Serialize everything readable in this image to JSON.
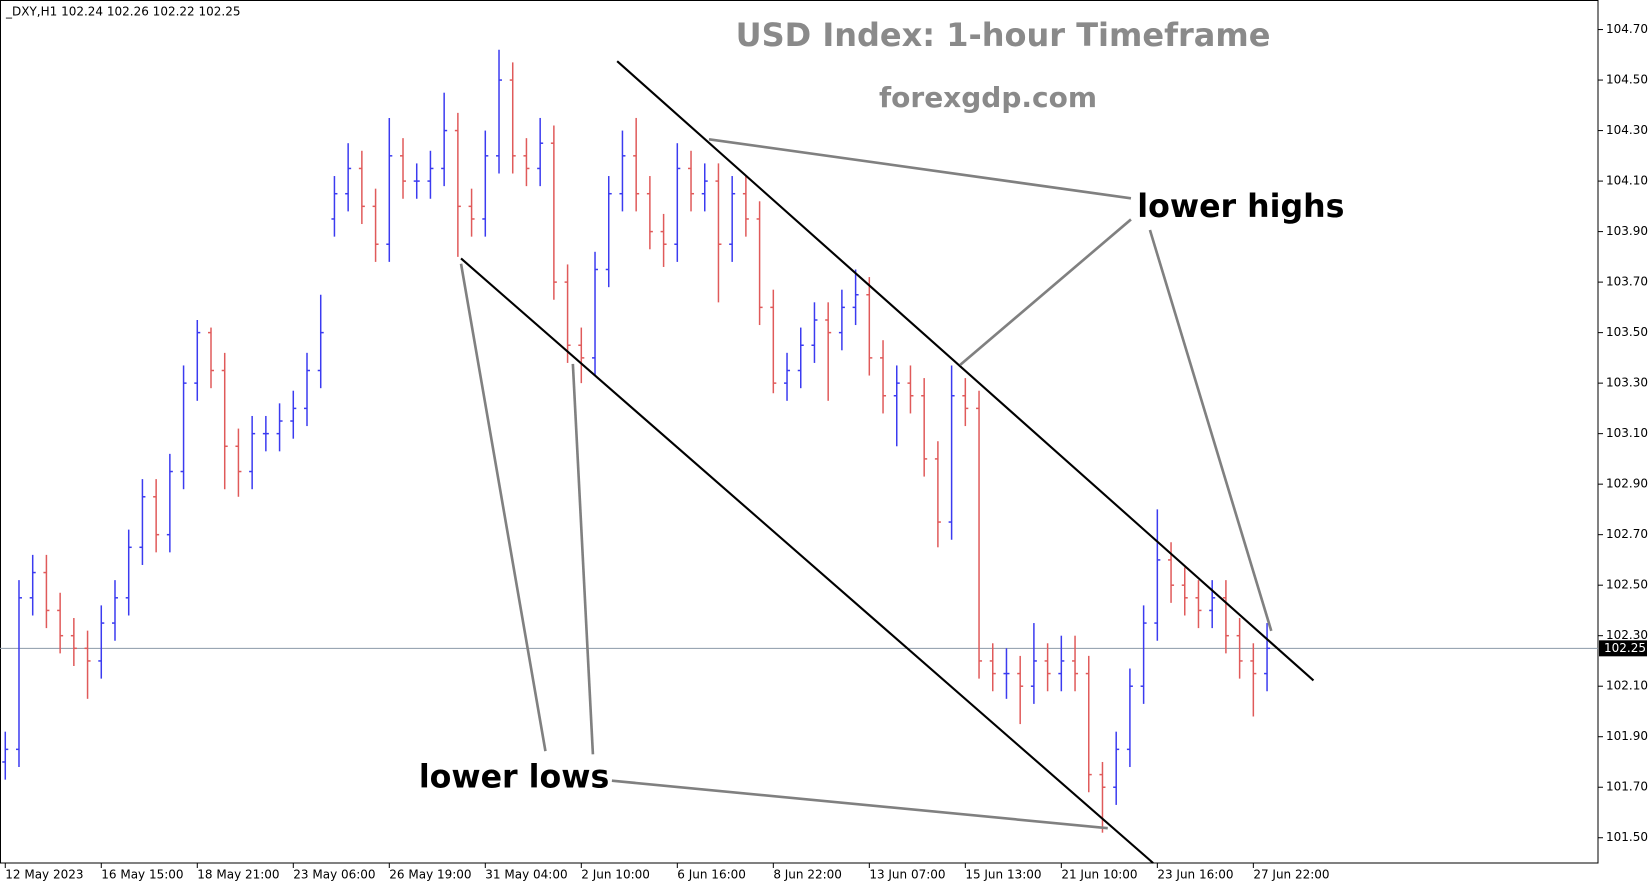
{
  "chart_data": {
    "type": "ohlc",
    "title": "USD Index: 1-hour Timeframe",
    "subtitle": "forexgdp.com",
    "header": "_DXY,H1  102.24 102.26 102.22 102.25",
    "annotations": [
      "lower highs",
      "lower lows"
    ],
    "current_price": 102.25,
    "up_color": "#3b3bf0",
    "down_color": "#e05a5a",
    "categories": [
      "12 May 2023",
      null,
      null,
      null,
      null,
      null,
      null,
      "16 May 15:00",
      null,
      null,
      null,
      null,
      null,
      null,
      "18 May 21:00",
      null,
      null,
      null,
      null,
      null,
      null,
      "23 May 06:00",
      null,
      null,
      null,
      null,
      null,
      null,
      "26 May 19:00",
      null,
      null,
      null,
      null,
      null,
      null,
      "31 May 04:00",
      null,
      null,
      null,
      null,
      null,
      null,
      "2 Jun 10:00",
      null,
      null,
      null,
      null,
      null,
      null,
      "6 Jun 16:00",
      null,
      null,
      null,
      null,
      null,
      null,
      "8 Jun 22:00",
      null,
      null,
      null,
      null,
      null,
      null,
      "13 Jun 07:00",
      null,
      null,
      null,
      null,
      null,
      null,
      "15 Jun 13:00",
      null,
      null,
      null,
      null,
      null,
      null,
      "21 Jun 10:00",
      null,
      null,
      null,
      null,
      null,
      null,
      "23 Jun 16:00",
      null,
      null,
      null,
      null,
      null,
      null,
      "27 Jun 22:00",
      null
    ],
    "open": [
      101.8,
      101.85,
      102.45,
      102.55,
      102.4,
      102.3,
      102.25,
      102.2,
      102.35,
      102.45,
      102.65,
      102.85,
      102.7,
      102.95,
      103.3,
      103.5,
      103.35,
      103.05,
      102.95,
      103.1,
      103.1,
      103.15,
      103.2,
      103.35,
      103.95,
      104.05,
      104.15,
      104.0,
      103.85,
      104.2,
      104.1,
      104.1,
      104.15,
      104.3,
      104.0,
      103.95,
      104.2,
      104.5,
      104.2,
      104.15,
      104.25,
      103.7,
      103.45,
      103.4,
      103.75,
      104.05,
      104.2,
      104.05,
      103.9,
      103.85,
      104.15,
      104.05,
      104.1,
      103.85,
      104.05,
      103.95,
      103.6,
      103.3,
      103.35,
      103.45,
      103.55,
      103.5,
      103.6,
      103.65,
      103.4,
      103.25,
      103.3,
      103.25,
      103.0,
      102.75,
      103.25,
      103.2,
      102.2,
      102.15,
      102.15,
      102.1,
      102.2,
      102.15,
      102.2,
      102.15,
      101.75,
      101.7,
      101.85,
      102.1,
      102.35,
      102.6,
      102.5,
      102.45,
      102.4,
      102.45,
      102.3,
      102.2,
      102.15
    ],
    "high": [
      101.92,
      102.52,
      102.62,
      102.62,
      102.47,
      102.37,
      102.32,
      102.42,
      102.52,
      102.72,
      102.92,
      102.92,
      103.02,
      103.37,
      103.55,
      103.52,
      103.42,
      103.12,
      103.17,
      103.17,
      103.22,
      103.27,
      103.42,
      103.65,
      104.12,
      104.25,
      104.22,
      104.07,
      104.35,
      104.27,
      104.17,
      104.22,
      104.45,
      104.37,
      104.07,
      104.3,
      104.62,
      104.57,
      104.27,
      104.35,
      104.32,
      103.77,
      103.52,
      103.82,
      104.12,
      104.3,
      104.35,
      104.12,
      103.97,
      104.25,
      104.22,
      104.17,
      104.17,
      104.12,
      104.12,
      104.02,
      103.67,
      103.42,
      103.52,
      103.62,
      103.62,
      103.67,
      103.75,
      103.72,
      103.47,
      103.37,
      103.37,
      103.32,
      103.07,
      103.37,
      103.32,
      103.27,
      102.27,
      102.25,
      102.22,
      102.35,
      102.27,
      102.3,
      102.3,
      102.22,
      101.8,
      101.92,
      102.17,
      102.42,
      102.8,
      102.67,
      102.57,
      102.52,
      102.52,
      102.52,
      102.37,
      102.27,
      102.35
    ],
    "low": [
      101.73,
      101.78,
      102.38,
      102.33,
      102.23,
      102.18,
      102.05,
      102.13,
      102.28,
      102.38,
      102.58,
      102.63,
      102.63,
      102.88,
      103.23,
      103.28,
      102.88,
      102.85,
      102.88,
      103.03,
      103.03,
      103.08,
      103.13,
      103.28,
      103.88,
      103.98,
      103.93,
      103.78,
      103.78,
      104.03,
      104.03,
      104.03,
      104.08,
      103.8,
      103.88,
      103.88,
      104.13,
      104.13,
      104.08,
      104.08,
      103.63,
      103.38,
      103.3,
      103.33,
      103.68,
      103.98,
      103.98,
      103.83,
      103.76,
      103.78,
      103.98,
      103.98,
      103.62,
      103.78,
      103.88,
      103.53,
      103.26,
      103.23,
      103.28,
      103.38,
      103.23,
      103.43,
      103.53,
      103.33,
      103.18,
      103.05,
      103.18,
      102.93,
      102.65,
      102.68,
      103.13,
      102.13,
      102.08,
      102.05,
      101.95,
      102.03,
      102.08,
      102.08,
      102.08,
      101.68,
      101.52,
      101.63,
      101.78,
      102.03,
      102.28,
      102.43,
      102.38,
      102.33,
      102.33,
      102.23,
      102.13,
      101.98,
      102.08
    ],
    "close": [
      101.85,
      102.45,
      102.55,
      102.4,
      102.3,
      102.25,
      102.2,
      102.35,
      102.45,
      102.65,
      102.85,
      102.7,
      102.95,
      103.3,
      103.5,
      103.35,
      103.05,
      102.95,
      103.1,
      103.1,
      103.15,
      103.2,
      103.35,
      103.5,
      104.05,
      104.15,
      104.0,
      103.85,
      104.2,
      104.1,
      104.1,
      104.15,
      104.3,
      104.0,
      103.95,
      104.2,
      104.5,
      104.2,
      104.15,
      104.25,
      103.7,
      103.45,
      103.4,
      103.75,
      104.05,
      104.2,
      104.05,
      103.9,
      103.85,
      104.15,
      104.05,
      104.1,
      103.85,
      104.05,
      103.95,
      103.6,
      103.3,
      103.35,
      103.45,
      103.55,
      103.5,
      103.6,
      103.65,
      103.4,
      103.25,
      103.3,
      103.25,
      103.0,
      102.75,
      103.25,
      103.2,
      102.2,
      102.15,
      102.15,
      102.1,
      102.2,
      102.15,
      102.2,
      102.15,
      101.75,
      101.7,
      101.85,
      102.1,
      102.35,
      102.6,
      102.5,
      102.45,
      102.4,
      102.45,
      102.3,
      102.2,
      102.15,
      102.25
    ],
    "ylim": [
      101.4,
      104.817
    ],
    "yticks": [
      {
        "value": 101.5,
        "label": "101.50"
      },
      {
        "value": 101.7,
        "label": "101.70"
      },
      {
        "value": 101.9,
        "label": "101.90"
      },
      {
        "value": 102.1,
        "label": "102.10"
      },
      {
        "value": 102.3,
        "label": "102.30"
      },
      {
        "value": 102.5,
        "label": "102.50"
      },
      {
        "value": 102.7,
        "label": "102.70"
      },
      {
        "value": 102.9,
        "label": "102.90"
      },
      {
        "value": 103.1,
        "label": "103.10"
      },
      {
        "value": 103.3,
        "label": "103.30"
      },
      {
        "value": 103.5,
        "label": "103.50"
      },
      {
        "value": 103.7,
        "label": "103.70"
      },
      {
        "value": 103.9,
        "label": "103.90"
      },
      {
        "value": 104.1,
        "label": "104.10"
      },
      {
        "value": 104.3,
        "label": "104.30"
      },
      {
        "value": 104.5,
        "label": "104.50"
      },
      {
        "value": 104.7,
        "label": "104.70"
      }
    ]
  }
}
